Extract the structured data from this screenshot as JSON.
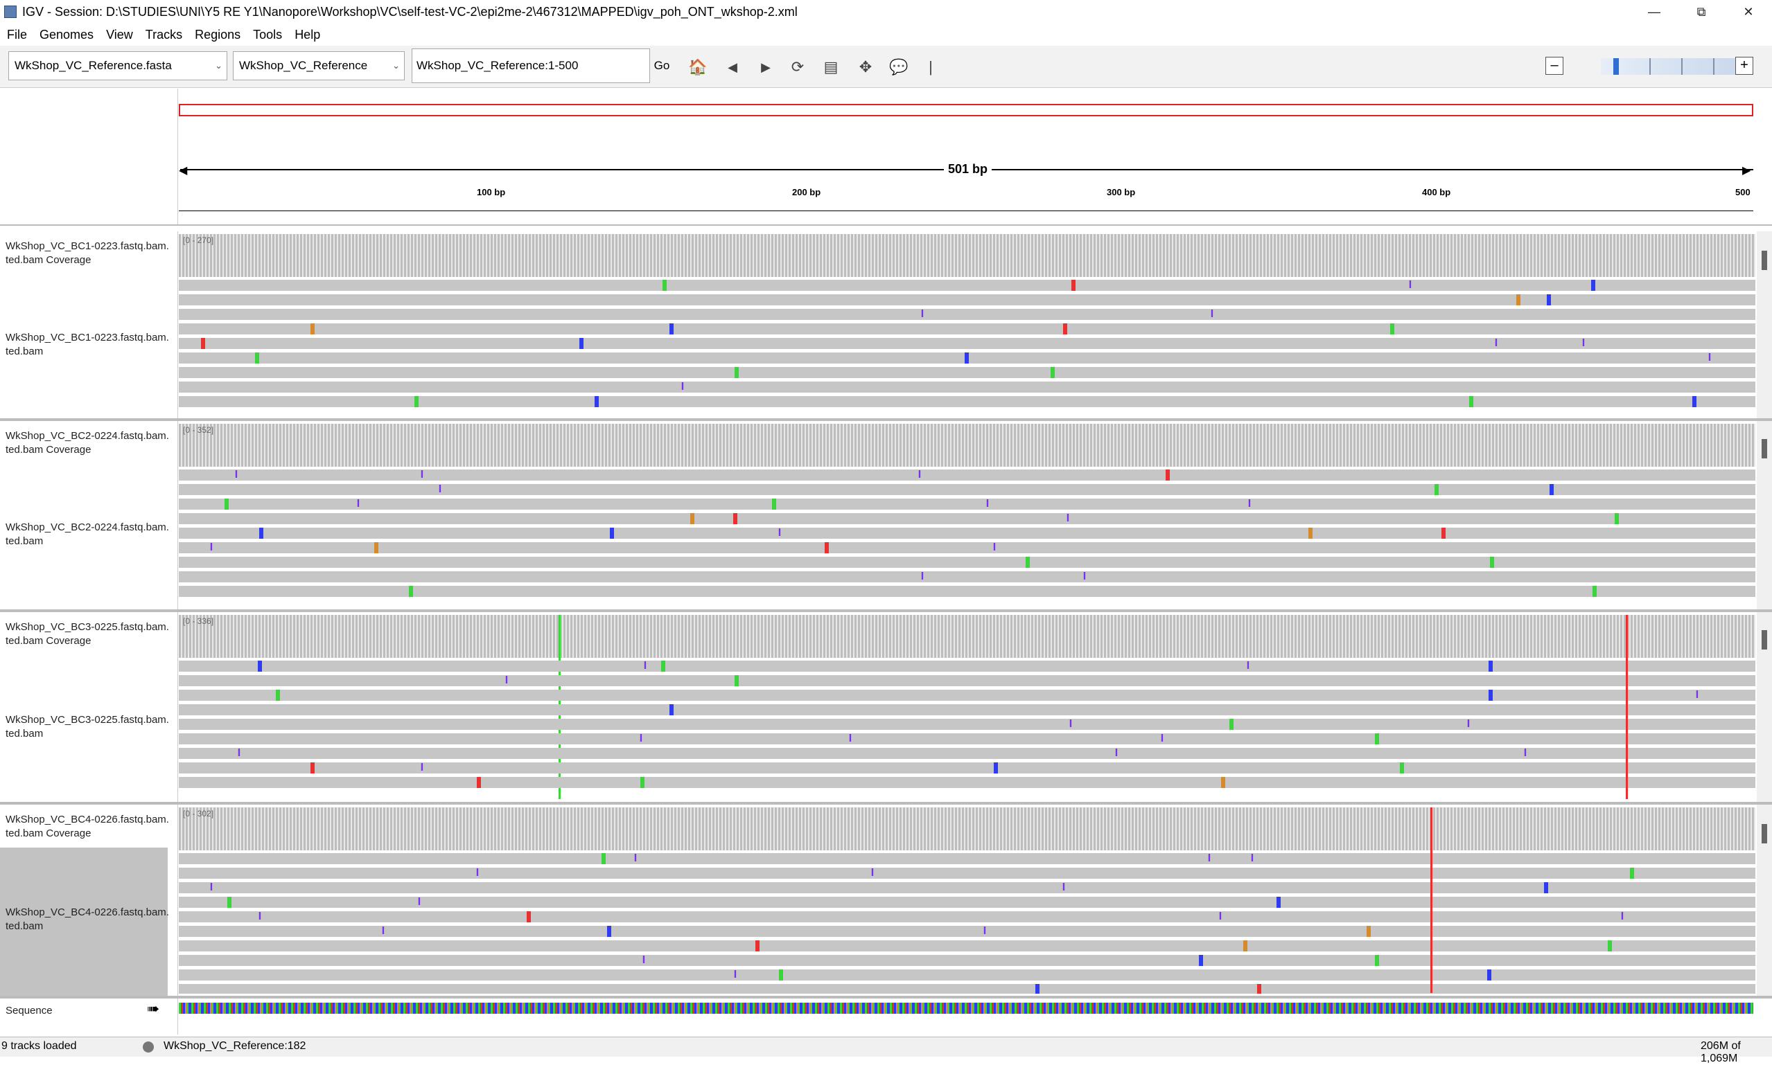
{
  "window": {
    "title": "IGV - Session: D:\\STUDIES\\UNI\\Y5 RE Y1\\Nanopore\\Workshop\\VC\\self-test-VC-2\\epi2me-2\\467312\\MAPPED\\igv_poh_ONT_wkshop-2.xml",
    "min": "—",
    "restore": "⧉",
    "close": "✕"
  },
  "menu": [
    "File",
    "Genomes",
    "View",
    "Tracks",
    "Regions",
    "Tools",
    "Help"
  ],
  "toolbar": {
    "genome": "WkShop_VC_Reference.fasta",
    "chromosome": "WkShop_VC_Reference",
    "locus": "WkShop_VC_Reference:1-500",
    "go": "Go",
    "zoom_out": "–",
    "zoom_in": "+"
  },
  "ruler": {
    "span": "501 bp",
    "ticks": [
      "100 bp",
      "200 bp",
      "300 bp",
      "400 bp",
      "500"
    ]
  },
  "tracks": [
    {
      "coverage_name": "WkShop_VC_BC1-0223.fastq.bam.",
      "coverage_name2": "ted.bam Coverage",
      "range": "[0 - 270]",
      "align_name": "WkShop_VC_BC1-0223.fastq.bam.",
      "align_name2": "ted.bam"
    },
    {
      "coverage_name": "WkShop_VC_BC2-0224.fastq.bam.",
      "coverage_name2": "ted.bam Coverage",
      "range": "[0 - 352]",
      "align_name": "WkShop_VC_BC2-0224.fastq.bam.",
      "align_name2": "ted.bam"
    },
    {
      "coverage_name": "WkShop_VC_BC3-0225.fastq.bam.",
      "coverage_name2": "ted.bam Coverage",
      "range": "[0 - 336]",
      "align_name": "WkShop_VC_BC3-0225.fastq.bam.",
      "align_name2": "ted.bam"
    },
    {
      "coverage_name": "WkShop_VC_BC4-0226.fastq.bam.",
      "coverage_name2": "ted.bam Coverage",
      "range": "[0 - 302]",
      "align_name": "WkShop_VC_BC4-0226.fastq.bam.",
      "align_name2": "ted.bam"
    }
  ],
  "sequence_label": "Sequence",
  "status": {
    "tracks_loaded": "9 tracks loaded",
    "position": "WkShop_VC_Reference:182",
    "memory": "206M of 1,069M"
  },
  "colors": {
    "A": "#3cd33c",
    "C": "#2d3cf0",
    "G": "#d58a2c",
    "T": "#e8312f",
    "insertion": "#7b2ff0"
  }
}
